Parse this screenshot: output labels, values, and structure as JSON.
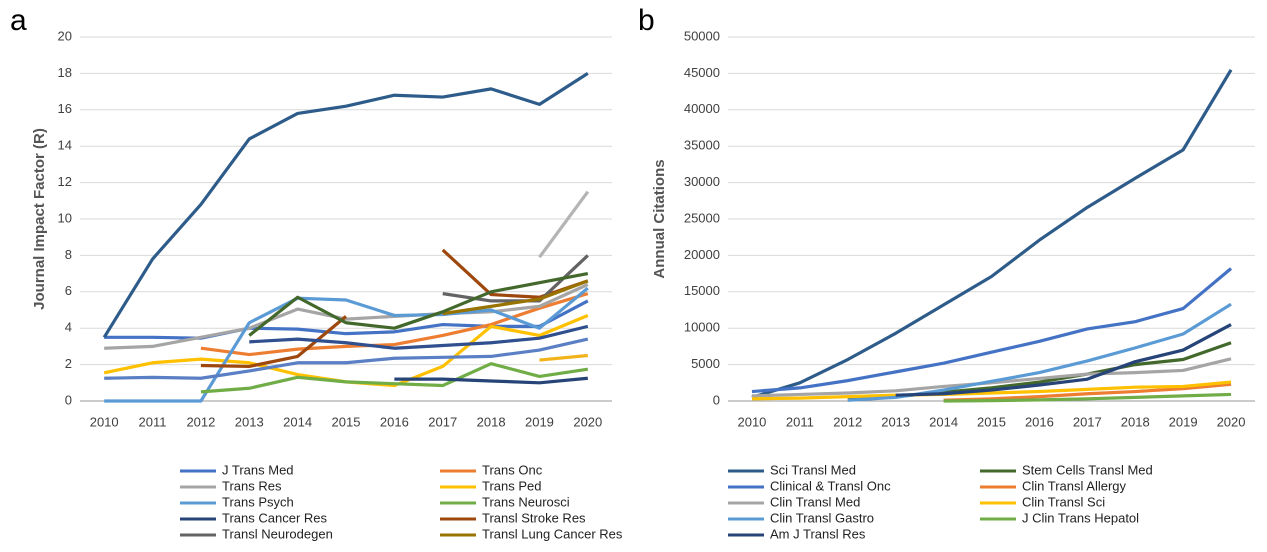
{
  "chart_data": [
    {
      "type": "line",
      "panel_label": "a",
      "y_label": "Journal Impact Factor (R)",
      "categories": [
        "2010",
        "2011",
        "2012",
        "2013",
        "2014",
        "2015",
        "2016",
        "2017",
        "2018",
        "2019",
        "2020"
      ],
      "ylim": [
        0,
        20
      ],
      "yticks": [
        0,
        2,
        4,
        6,
        8,
        10,
        12,
        14,
        16,
        18,
        20
      ],
      "grid": true,
      "series": [
        {
          "name": "J Trans Med",
          "color": "#4472c4",
          "values": [
            3.5,
            3.5,
            3.45,
            4.0,
            3.95,
            3.7,
            3.8,
            4.2,
            4.1,
            4.1,
            5.5
          ]
        },
        {
          "name": "Trans Onc",
          "color": "#ed7d31",
          "values": [
            null,
            null,
            2.9,
            2.55,
            2.85,
            3.0,
            3.1,
            3.6,
            4.2,
            5.1,
            5.9
          ]
        },
        {
          "name": "Trans Res",
          "color": "#a5a5a5",
          "values": [
            2.9,
            3.0,
            3.5,
            4.0,
            5.05,
            4.5,
            4.65,
            4.8,
            4.9,
            5.2,
            6.4
          ]
        },
        {
          "name": "Trans Ped",
          "color": "#ffc000",
          "values": [
            1.55,
            2.1,
            2.3,
            2.1,
            1.45,
            1.05,
            0.85,
            1.9,
            4.1,
            3.6,
            4.7
          ]
        },
        {
          "name": "Trans Psych",
          "color": "#5b9bd5",
          "values": [
            0,
            0,
            0,
            4.3,
            5.65,
            5.55,
            4.7,
            4.75,
            5.0,
            4.0,
            6.2
          ]
        },
        {
          "name": "Trans Neurosci",
          "color": "#70ad47",
          "values": [
            null,
            null,
            0.5,
            0.7,
            1.3,
            1.05,
            0.95,
            0.85,
            2.05,
            1.35,
            1.75
          ]
        },
        {
          "name": "Trans Cancer Res",
          "color": "#264478",
          "values": [
            null,
            null,
            null,
            null,
            null,
            null,
            1.2,
            1.2,
            1.1,
            1.0,
            1.25
          ]
        },
        {
          "name": "Transl Stroke Res",
          "color": "#9e480e",
          "values": [
            null,
            null,
            1.95,
            1.9,
            2.45,
            4.65,
            null,
            8.3,
            5.85,
            5.7,
            6.6
          ]
        },
        {
          "name": "Transl Neurodegen",
          "color": "#636363",
          "values": [
            null,
            null,
            null,
            null,
            null,
            null,
            null,
            5.9,
            5.5,
            5.5,
            8.0
          ]
        },
        {
          "name": "Transl Lung Cancer Res",
          "color": "#997300",
          "values": [
            null,
            null,
            null,
            null,
            null,
            null,
            null,
            4.8,
            5.2,
            5.6,
            6.6
          ]
        },
        {
          "color": "#2e5c8a",
          "values": [
            3.5,
            7.8,
            10.8,
            14.4,
            15.8,
            16.2,
            16.8,
            16.7,
            17.15,
            16.3,
            18.0
          ]
        },
        {
          "color": "#b4b4b4",
          "values": [
            null,
            null,
            null,
            null,
            null,
            null,
            null,
            null,
            null,
            7.9,
            11.5
          ]
        },
        {
          "color": "#43682b",
          "values": [
            null,
            null,
            null,
            3.6,
            5.7,
            4.3,
            4.0,
            4.9,
            6.0,
            6.5,
            7.0
          ]
        },
        {
          "color": "#2f4f8f",
          "values": [
            null,
            null,
            null,
            3.25,
            3.4,
            3.2,
            2.9,
            3.05,
            3.2,
            3.45,
            4.1
          ]
        },
        {
          "color": "#5a7fc4",
          "values": [
            1.25,
            1.3,
            1.25,
            1.65,
            2.1,
            2.1,
            2.35,
            2.4,
            2.45,
            2.8,
            3.4
          ]
        },
        {
          "color": "#f2b21a",
          "values": [
            null,
            null,
            null,
            null,
            null,
            null,
            null,
            null,
            null,
            2.25,
            2.5
          ]
        }
      ]
    },
    {
      "type": "line",
      "panel_label": "b",
      "y_label": "Annual Citations",
      "categories": [
        "2010",
        "2011",
        "2012",
        "2013",
        "2014",
        "2015",
        "2016",
        "2017",
        "2018",
        "2019",
        "2020"
      ],
      "ylim": [
        0,
        50000
      ],
      "yticks": [
        0,
        5000,
        10000,
        15000,
        20000,
        25000,
        30000,
        35000,
        40000,
        45000,
        50000
      ],
      "grid": true,
      "series": [
        {
          "name": "Sci Transl Med",
          "color": "#2e5c8a",
          "values": [
            500,
            2500,
            5700,
            9300,
            13200,
            17100,
            22100,
            26600,
            30600,
            34500,
            45500
          ]
        },
        {
          "name": "Stem Cells Transl Med",
          "color": "#43682b",
          "values": [
            null,
            null,
            200,
            600,
            1200,
            1800,
            2600,
            3700,
            5000,
            5700,
            8000
          ]
        },
        {
          "name": "Clinical & Transl Onc",
          "color": "#4472c4",
          "values": [
            1300,
            1800,
            2800,
            4000,
            5200,
            6700,
            8200,
            9900,
            10900,
            12700,
            18200
          ]
        },
        {
          "name": "Clin Transl Allergy",
          "color": "#ed7d31",
          "values": [
            null,
            null,
            null,
            null,
            100,
            300,
            600,
            1000,
            1300,
            1700,
            2300
          ]
        },
        {
          "name": "Clin Transl Med",
          "color": "#a5a5a5",
          "values": [
            700,
            900,
            1100,
            1400,
            2000,
            2500,
            3100,
            3700,
            3900,
            4200,
            5800
          ]
        },
        {
          "name": "Clin Transl Sci",
          "color": "#ffc000",
          "values": [
            300,
            400,
            600,
            800,
            900,
            1100,
            1300,
            1600,
            1900,
            2000,
            2600
          ]
        },
        {
          "name": "Clin Transl Gastro",
          "color": "#5b9bd5",
          "values": [
            null,
            null,
            100,
            500,
            1500,
            2700,
            3900,
            5500,
            7300,
            9200,
            13300
          ]
        },
        {
          "name": "J Clin Trans Hepatol",
          "color": "#70ad47",
          "values": [
            null,
            null,
            null,
            null,
            0,
            50,
            150,
            300,
            500,
            700,
            900
          ]
        },
        {
          "name": "Am J Transl Res",
          "color": "#264478",
          "values": [
            null,
            null,
            null,
            800,
            1000,
            1500,
            2200,
            3000,
            5400,
            7000,
            10500
          ]
        }
      ]
    }
  ]
}
